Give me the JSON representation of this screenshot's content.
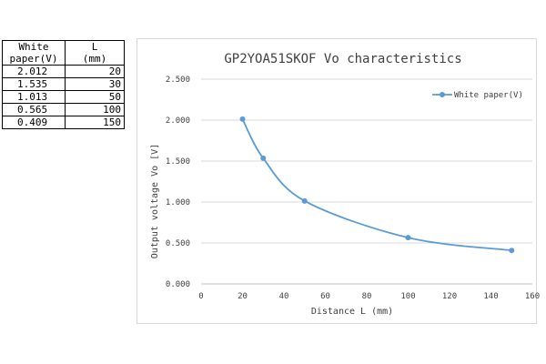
{
  "table": {
    "headers": [
      [
        "White",
        "paper(V)"
      ],
      [
        "L",
        "(mm)"
      ]
    ],
    "rows": [
      [
        "2.012",
        "20"
      ],
      [
        "1.535",
        "30"
      ],
      [
        "1.013",
        "50"
      ],
      [
        "0.565",
        "100"
      ],
      [
        "0.409",
        "150"
      ]
    ]
  },
  "chart_data": {
    "type": "line",
    "title": "GP2YOA51SKOF  Vo characteristics",
    "xlabel": "Distance L (mm)",
    "ylabel": "Output voltage Vo [V]",
    "xlim": [
      0,
      160
    ],
    "ylim": [
      0,
      2.5
    ],
    "xticks": [
      "0",
      "20",
      "40",
      "60",
      "80",
      "100",
      "120",
      "140",
      "160"
    ],
    "yticks": [
      "0.000",
      "0.500",
      "1.000",
      "1.500",
      "2.000",
      "2.500"
    ],
    "grid": true,
    "legend_position": "top-right",
    "series": [
      {
        "name": "White paper(V)",
        "color": "#5b9bd5",
        "x": [
          20,
          30,
          50,
          100,
          150
        ],
        "y": [
          2.012,
          1.535,
          1.013,
          0.565,
          0.409
        ]
      }
    ]
  }
}
